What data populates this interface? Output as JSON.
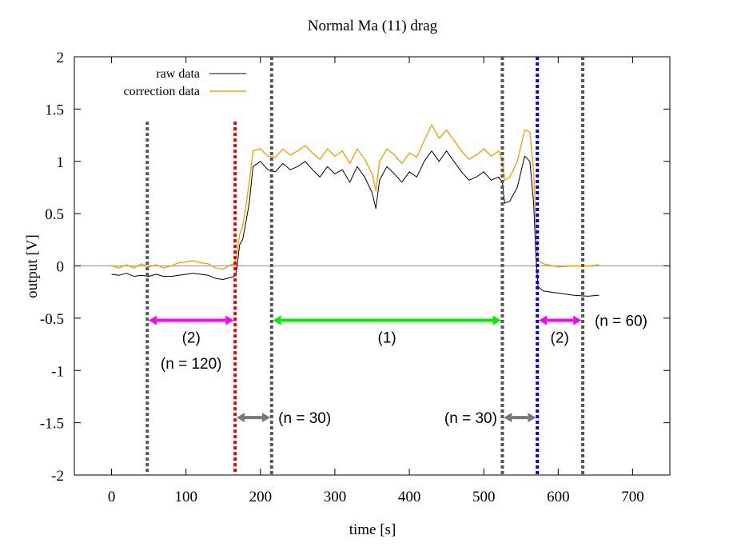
{
  "chart_data": {
    "type": "line",
    "title": "Normal  Ma (11) drag",
    "xlabel": "time [s]",
    "ylabel": "output [V]",
    "xlim": [
      -50,
      750
    ],
    "ylim": [
      -2,
      2
    ],
    "xticks": [
      0,
      100,
      200,
      300,
      400,
      500,
      600,
      700
    ],
    "yticks": [
      -2,
      -1.5,
      -1,
      -0.5,
      0,
      0.5,
      1,
      1.5,
      2
    ],
    "ytick_labels": [
      "-2",
      "-1.5",
      "-1",
      "-0.5",
      "0",
      "0.5",
      "1",
      "1.5",
      "2"
    ],
    "grid": false,
    "legend_position": "top-left",
    "zero_line": true,
    "series": [
      {
        "name": "raw data",
        "color": "#000000",
        "points": [
          [
            0,
            -0.08
          ],
          [
            10,
            -0.09
          ],
          [
            20,
            -0.07
          ],
          [
            30,
            -0.1
          ],
          [
            40,
            -0.09
          ],
          [
            50,
            -0.1
          ],
          [
            60,
            -0.08
          ],
          [
            70,
            -0.1
          ],
          [
            80,
            -0.1
          ],
          [
            90,
            -0.09
          ],
          [
            100,
            -0.08
          ],
          [
            110,
            -0.07
          ],
          [
            120,
            -0.08
          ],
          [
            130,
            -0.09
          ],
          [
            140,
            -0.12
          ],
          [
            150,
            -0.13
          ],
          [
            160,
            -0.11
          ],
          [
            165,
            -0.1
          ],
          [
            168,
            -0.05
          ],
          [
            172,
            0.2
          ],
          [
            176,
            0.25
          ],
          [
            180,
            0.4
          ],
          [
            185,
            0.6
          ],
          [
            190,
            0.95
          ],
          [
            200,
            1.0
          ],
          [
            210,
            0.92
          ],
          [
            220,
            0.9
          ],
          [
            230,
            0.98
          ],
          [
            240,
            0.92
          ],
          [
            250,
            0.95
          ],
          [
            260,
            1.0
          ],
          [
            270,
            0.92
          ],
          [
            280,
            0.85
          ],
          [
            290,
            0.95
          ],
          [
            300,
            0.88
          ],
          [
            310,
            0.92
          ],
          [
            320,
            0.8
          ],
          [
            330,
            0.95
          ],
          [
            340,
            0.85
          ],
          [
            350,
            0.7
          ],
          [
            355,
            0.55
          ],
          [
            360,
            0.82
          ],
          [
            370,
            0.95
          ],
          [
            380,
            0.88
          ],
          [
            390,
            0.8
          ],
          [
            400,
            0.9
          ],
          [
            410,
            0.85
          ],
          [
            420,
            1.0
          ],
          [
            430,
            1.1
          ],
          [
            440,
            1.0
          ],
          [
            450,
            1.1
          ],
          [
            460,
            1.0
          ],
          [
            470,
            0.9
          ],
          [
            480,
            0.82
          ],
          [
            490,
            0.85
          ],
          [
            500,
            0.9
          ],
          [
            510,
            0.82
          ],
          [
            520,
            0.85
          ],
          [
            525,
            0.8
          ],
          [
            528,
            0.6
          ],
          [
            535,
            0.62
          ],
          [
            545,
            0.75
          ],
          [
            555,
            1.05
          ],
          [
            562,
            1.0
          ],
          [
            567,
            0.6
          ],
          [
            570,
            0.1
          ],
          [
            573,
            -0.2
          ],
          [
            580,
            -0.24
          ],
          [
            600,
            -0.26
          ],
          [
            620,
            -0.28
          ],
          [
            640,
            -0.29
          ],
          [
            655,
            -0.28
          ]
        ]
      },
      {
        "name": "correction data",
        "color": "#f5a30a",
        "points": [
          [
            0,
            0.0
          ],
          [
            10,
            -0.02
          ],
          [
            20,
            0.01
          ],
          [
            30,
            -0.02
          ],
          [
            40,
            0.02
          ],
          [
            50,
            -0.01
          ],
          [
            60,
            0.01
          ],
          [
            70,
            -0.02
          ],
          [
            80,
            0.0
          ],
          [
            90,
            0.03
          ],
          [
            100,
            0.04
          ],
          [
            110,
            0.05
          ],
          [
            120,
            0.03
          ],
          [
            130,
            0.02
          ],
          [
            140,
            -0.02
          ],
          [
            150,
            -0.03
          ],
          [
            160,
            0.01
          ],
          [
            165,
            0.02
          ],
          [
            168,
            0.1
          ],
          [
            172,
            0.3
          ],
          [
            176,
            0.38
          ],
          [
            180,
            0.55
          ],
          [
            185,
            0.8
          ],
          [
            190,
            1.1
          ],
          [
            200,
            1.12
          ],
          [
            210,
            1.05
          ],
          [
            220,
            1.04
          ],
          [
            230,
            1.12
          ],
          [
            240,
            1.06
          ],
          [
            250,
            1.1
          ],
          [
            260,
            1.15
          ],
          [
            270,
            1.08
          ],
          [
            280,
            1.02
          ],
          [
            290,
            1.12
          ],
          [
            300,
            1.05
          ],
          [
            310,
            1.1
          ],
          [
            320,
            0.98
          ],
          [
            330,
            1.12
          ],
          [
            340,
            1.02
          ],
          [
            350,
            0.88
          ],
          [
            355,
            0.72
          ],
          [
            360,
            1.0
          ],
          [
            370,
            1.12
          ],
          [
            380,
            1.06
          ],
          [
            390,
            0.98
          ],
          [
            400,
            1.08
          ],
          [
            410,
            1.04
          ],
          [
            420,
            1.2
          ],
          [
            430,
            1.35
          ],
          [
            440,
            1.22
          ],
          [
            450,
            1.3
          ],
          [
            460,
            1.2
          ],
          [
            470,
            1.1
          ],
          [
            480,
            1.02
          ],
          [
            490,
            1.06
          ],
          [
            500,
            1.12
          ],
          [
            510,
            1.05
          ],
          [
            520,
            1.1
          ],
          [
            525,
            1.0
          ],
          [
            528,
            0.82
          ],
          [
            535,
            0.85
          ],
          [
            545,
            1.0
          ],
          [
            555,
            1.3
          ],
          [
            562,
            1.28
          ],
          [
            567,
            0.9
          ],
          [
            570,
            0.4
          ],
          [
            573,
            0.05
          ],
          [
            580,
            0.02
          ],
          [
            600,
            -0.01
          ],
          [
            620,
            0.0
          ],
          [
            640,
            0.0
          ],
          [
            655,
            0.01
          ]
        ]
      }
    ],
    "vlines": [
      {
        "x": 48,
        "color": "#555555",
        "ymax": 1.38
      },
      {
        "x": 166,
        "color": "#ee0000",
        "ymax": 1.38
      },
      {
        "x": 215,
        "color": "#555555",
        "ymax": 2
      },
      {
        "x": 525,
        "color": "#555555",
        "ymax": 2
      },
      {
        "x": 572,
        "color": "#0000ee",
        "ymax": 2
      },
      {
        "x": 633,
        "color": "#555555",
        "ymax": 2
      }
    ],
    "arrows": [
      {
        "x1": 50,
        "x2": 164,
        "y": -0.52,
        "color": "#ff00ff"
      },
      {
        "x1": 217,
        "x2": 523,
        "y": -0.52,
        "color": "#00ee00"
      },
      {
        "x1": 574,
        "x2": 631,
        "y": -0.52,
        "color": "#ff00ff"
      },
      {
        "x1": 168,
        "x2": 213,
        "y": -1.45,
        "color": "#777777"
      },
      {
        "x1": 527,
        "x2": 570,
        "y": -1.45,
        "color": "#777777"
      }
    ],
    "annotations": [
      {
        "text": "(2)",
        "x": 107,
        "y": -0.68,
        "anchor": "middle"
      },
      {
        "text": "(n = 120)",
        "x": 107,
        "y": -0.93,
        "anchor": "middle"
      },
      {
        "text": "(1)",
        "x": 370,
        "y": -0.68,
        "anchor": "middle"
      },
      {
        "text": "(2)",
        "x": 602,
        "y": -0.68,
        "anchor": "middle"
      },
      {
        "text": "(n = 60)",
        "x": 649,
        "y": -0.52,
        "anchor": "start"
      },
      {
        "text": "(n = 30)",
        "x": 224,
        "y": -1.45,
        "anchor": "start"
      },
      {
        "text": "(n = 30)",
        "x": 518,
        "y": -1.45,
        "anchor": "end"
      }
    ]
  }
}
